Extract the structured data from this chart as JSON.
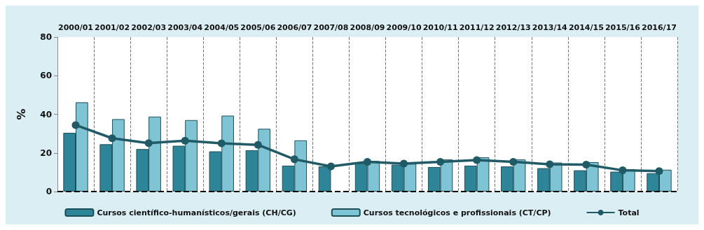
{
  "chart_data": {
    "type": "bar",
    "ylabel": "%",
    "categories": [
      "2000/01",
      "2001/02",
      "2002/03",
      "2003/04",
      "2004/05",
      "2005/06",
      "2006/07",
      "2007/08",
      "2008/09",
      "2009/10",
      "2010/11",
      "2011/12",
      "2012/13",
      "2013/14",
      "2014/15",
      "2015/16",
      "2016/17"
    ],
    "series": [
      {
        "name": "Cursos científico-humanísticos/gerais (CH/CG)",
        "color": "#2e8598",
        "values": [
          30.4,
          24.5,
          22.0,
          23.7,
          20.8,
          21.4,
          13.4,
          13.0,
          14.6,
          13.9,
          12.7,
          13.4,
          13.0,
          12.1,
          11.0,
          10.3,
          9.5
        ]
      },
      {
        "name": "Cursos tecnológicos e profissionais (CT/CP)",
        "color": "#7fc4d4",
        "values": [
          46.2,
          37.5,
          38.8,
          37.0,
          39.3,
          32.5,
          26.5,
          null,
          15.8,
          14.4,
          16.6,
          17.7,
          16.6,
          15.0,
          15.2,
          11.6,
          11.3
        ]
      },
      {
        "name": "Total",
        "type": "line",
        "color": "#1f5a66",
        "marker": "circle",
        "values": [
          34.4,
          27.6,
          25.1,
          26.3,
          25.0,
          24.2,
          16.7,
          13.0,
          15.4,
          14.5,
          15.4,
          16.3,
          15.4,
          14.1,
          13.9,
          11.0,
          10.6
        ]
      }
    ],
    "ylim": [
      0,
      80
    ],
    "yticks": [
      0,
      20,
      40,
      60,
      80
    ],
    "grid": "x",
    "legend": "bottom"
  }
}
